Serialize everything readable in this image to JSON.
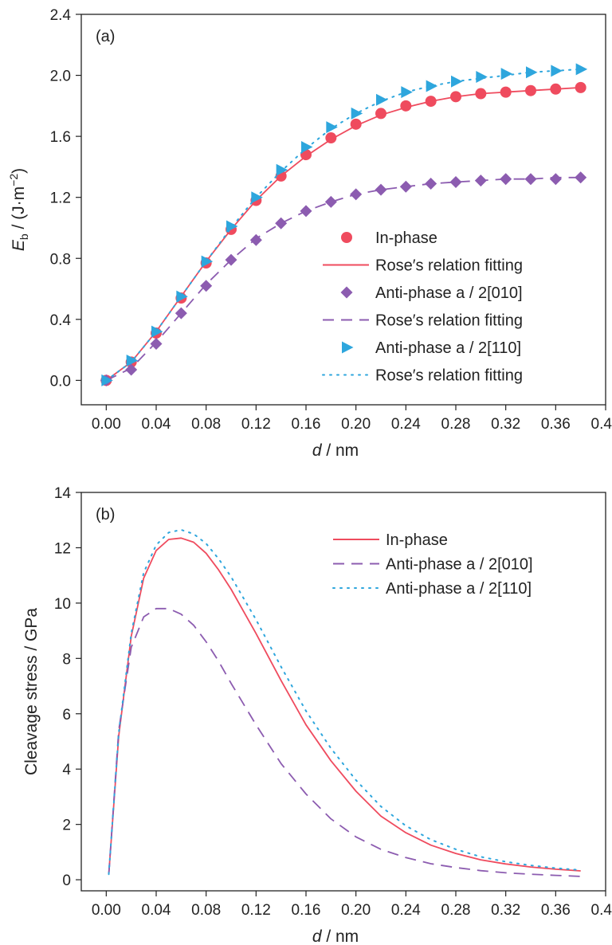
{
  "colors": {
    "in_phase": "#ef4b5e",
    "anti_010": "#8c5cb0",
    "anti_110": "#2ea6dd"
  },
  "chart_data": [
    {
      "id": "a",
      "type": "scatter",
      "panel_label": "(a)",
      "xlabel_italic": "d",
      "xlabel_rest": " / nm",
      "ylabel_italic": "E",
      "ylabel_sub": "b",
      "ylabel_rest": " / (J·m",
      "ylabel_sup": "−2",
      "ylabel_close": ")",
      "xlim": [
        -0.02,
        0.4
      ],
      "ylim": [
        -0.16,
        2.4
      ],
      "xticks": [
        "0.00",
        "0.04",
        "0.08",
        "0.12",
        "0.16",
        "0.20",
        "0.24",
        "0.28",
        "0.32",
        "0.36",
        "0.40"
      ],
      "yticks": [
        "0.0",
        "0.4",
        "0.8",
        "1.2",
        "1.6",
        "2.0",
        "2.4"
      ],
      "legend_position": "center-right",
      "x": [
        0.0,
        0.02,
        0.04,
        0.06,
        0.08,
        0.1,
        0.12,
        0.14,
        0.16,
        0.18,
        0.2,
        0.22,
        0.24,
        0.26,
        0.28,
        0.3,
        0.32,
        0.34,
        0.36,
        0.38
      ],
      "series": [
        {
          "name": "In-phase",
          "kind": "points",
          "marker": "circle",
          "color_key": "in_phase",
          "values": [
            0.0,
            0.12,
            0.31,
            0.54,
            0.77,
            0.99,
            1.18,
            1.34,
            1.48,
            1.59,
            1.68,
            1.75,
            1.8,
            1.83,
            1.86,
            1.88,
            1.89,
            1.9,
            1.91,
            1.92
          ]
        },
        {
          "name": "Rose′s relation fitting",
          "kind": "line",
          "dash": "solid",
          "color_key": "in_phase",
          "values": [
            0.0,
            0.12,
            0.32,
            0.55,
            0.78,
            0.99,
            1.18,
            1.34,
            1.47,
            1.58,
            1.67,
            1.74,
            1.79,
            1.83,
            1.86,
            1.88,
            1.89,
            1.9,
            1.91,
            1.92
          ]
        },
        {
          "name": "Anti-phase a / 2[010]",
          "kind": "points",
          "marker": "diamond",
          "color_key": "anti_010",
          "values": [
            0.0,
            0.07,
            0.24,
            0.44,
            0.62,
            0.79,
            0.92,
            1.03,
            1.11,
            1.17,
            1.22,
            1.25,
            1.27,
            1.29,
            1.3,
            1.31,
            1.32,
            1.32,
            1.32,
            1.33
          ]
        },
        {
          "name": "Rose′s relation fitting",
          "kind": "line",
          "dash": "dashed",
          "color_key": "anti_010",
          "values": [
            0.0,
            0.08,
            0.25,
            0.44,
            0.63,
            0.79,
            0.93,
            1.03,
            1.11,
            1.17,
            1.22,
            1.25,
            1.27,
            1.29,
            1.3,
            1.31,
            1.32,
            1.32,
            1.33,
            1.33
          ]
        },
        {
          "name": "Anti-phase a / 2[110]",
          "kind": "points",
          "marker": "triangle-right",
          "color_key": "anti_110",
          "values": [
            0.0,
            0.13,
            0.32,
            0.55,
            0.78,
            1.01,
            1.2,
            1.38,
            1.53,
            1.66,
            1.75,
            1.84,
            1.89,
            1.93,
            1.96,
            1.99,
            2.01,
            2.02,
            2.03,
            2.04
          ]
        },
        {
          "name": "Rose′s relation fitting",
          "kind": "line",
          "dash": "dotted",
          "color_key": "anti_110",
          "values": [
            0.0,
            0.12,
            0.32,
            0.55,
            0.78,
            1.0,
            1.2,
            1.37,
            1.52,
            1.65,
            1.75,
            1.83,
            1.89,
            1.93,
            1.96,
            1.98,
            2.0,
            2.02,
            2.03,
            2.04
          ]
        }
      ]
    },
    {
      "id": "b",
      "type": "line",
      "panel_label": "(b)",
      "xlabel_italic": "d",
      "xlabel_rest": " / nm",
      "ylabel": "Cleavage stress / GPa",
      "xlim": [
        -0.02,
        0.4
      ],
      "ylim": [
        -0.4,
        14
      ],
      "xticks": [
        "0.00",
        "0.04",
        "0.08",
        "0.12",
        "0.16",
        "0.20",
        "0.24",
        "0.28",
        "0.32",
        "0.36",
        "0.40"
      ],
      "yticks": [
        "0",
        "2",
        "4",
        "6",
        "8",
        "10",
        "12",
        "14"
      ],
      "legend_position": "top-right",
      "x": [
        0.002,
        0.01,
        0.02,
        0.03,
        0.04,
        0.05,
        0.06,
        0.07,
        0.08,
        0.09,
        0.1,
        0.12,
        0.14,
        0.16,
        0.18,
        0.2,
        0.22,
        0.24,
        0.26,
        0.28,
        0.3,
        0.32,
        0.34,
        0.36,
        0.38
      ],
      "series": [
        {
          "name": "In-phase",
          "dash": "solid",
          "color_key": "in_phase",
          "values": [
            0.2,
            5.2,
            8.8,
            10.9,
            11.9,
            12.3,
            12.35,
            12.2,
            11.8,
            11.2,
            10.5,
            8.9,
            7.2,
            5.6,
            4.3,
            3.2,
            2.3,
            1.7,
            1.25,
            0.95,
            0.72,
            0.57,
            0.46,
            0.38,
            0.32
          ]
        },
        {
          "name": "Anti-phase a / 2[010]",
          "dash": "dashed",
          "color_key": "anti_010",
          "values": [
            0.2,
            5.4,
            8.4,
            9.5,
            9.8,
            9.8,
            9.6,
            9.2,
            8.6,
            7.9,
            7.1,
            5.6,
            4.2,
            3.1,
            2.2,
            1.55,
            1.1,
            0.8,
            0.58,
            0.44,
            0.33,
            0.25,
            0.2,
            0.16,
            0.12
          ]
        },
        {
          "name": "Anti-phase a / 2[110]",
          "dash": "dotted",
          "color_key": "anti_110",
          "values": [
            0.2,
            5.3,
            8.9,
            11.1,
            12.1,
            12.55,
            12.65,
            12.5,
            12.15,
            11.6,
            10.95,
            9.4,
            7.7,
            6.1,
            4.75,
            3.6,
            2.65,
            1.95,
            1.45,
            1.1,
            0.83,
            0.65,
            0.52,
            0.42,
            0.35
          ]
        }
      ]
    }
  ]
}
